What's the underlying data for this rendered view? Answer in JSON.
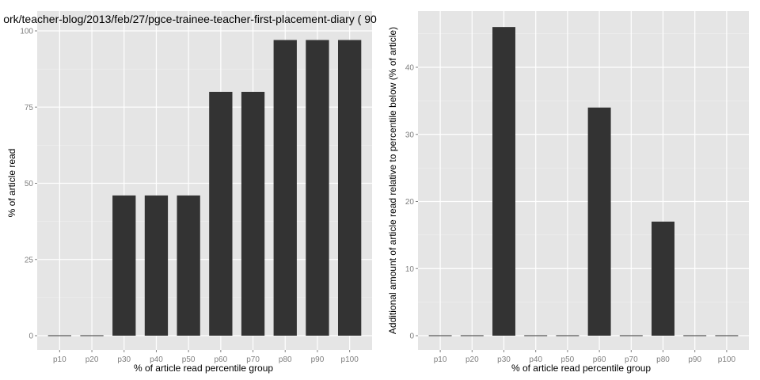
{
  "chart_data": [
    {
      "type": "bar",
      "title": "ork/teacher-blog/2013/feb/27/pgce-trainee-teacher-first-placement-diary ( 90",
      "xlabel": "% of article read percentile group",
      "ylabel": "% of article read",
      "categories": [
        "p10",
        "p20",
        "p30",
        "p40",
        "p50",
        "p60",
        "p70",
        "p80",
        "p90",
        "p100"
      ],
      "values": [
        0,
        0,
        46,
        46,
        46,
        80,
        80,
        97,
        97,
        97
      ],
      "ylim": [
        0,
        100
      ],
      "yticks": [
        0,
        25,
        50,
        75,
        100
      ],
      "grid": true,
      "bar_color": "#333333",
      "panel_color": "#e5e5e5"
    },
    {
      "type": "bar",
      "title": "",
      "xlabel": "% of article read percentile group",
      "ylabel": "Additional amount of article read relative to percentile below (% of article)",
      "categories": [
        "p10",
        "p20",
        "p30",
        "p40",
        "p50",
        "p60",
        "p70",
        "p80",
        "p90",
        "p100"
      ],
      "values": [
        0,
        0,
        46,
        0,
        0,
        34,
        0,
        17,
        0,
        0
      ],
      "ylim": [
        0,
        48
      ],
      "yticks": [
        0,
        10,
        20,
        30,
        40
      ],
      "grid": true,
      "bar_color": "#333333",
      "panel_color": "#e5e5e5"
    }
  ]
}
